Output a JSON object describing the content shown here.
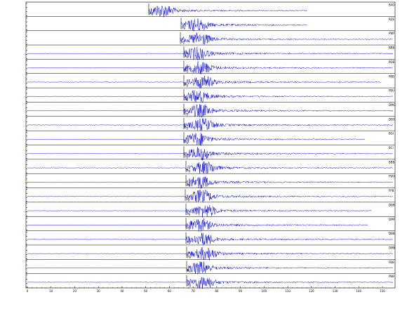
{
  "window": {
    "title": ""
  },
  "colors": {
    "trace": "#0000ee",
    "frame": "#000000",
    "pick": "#000000",
    "background": "#ffffff"
  },
  "station_labels": [
    "BAO",
    "RZE",
    "PWF",
    "BBB",
    "PDB",
    "PBB",
    "PBU",
    "DMO",
    "DBO",
    "BGI",
    "BCI",
    "BBB",
    "FWV",
    "FPB",
    "DBB",
    "DMF",
    "DBB",
    "DMB",
    "FBB",
    "PBB"
  ],
  "pick_labels": [
    "Pg",
    "Pg",
    "Pg",
    "Pg",
    "Pg",
    "Pg",
    "Pg",
    "Pg",
    "Pg",
    "Pg",
    "Pg",
    "Pg",
    "Pg",
    "Pg",
    "Pg",
    "Pg",
    "Pg",
    "Pg",
    "Pg",
    "Pg"
  ],
  "x_axis_ticks": [
    "0",
    "10",
    "20",
    "30",
    "40",
    "50",
    "60",
    "70",
    "80",
    "90",
    "100",
    "110",
    "120",
    "130",
    "140",
    "150"
  ]
}
